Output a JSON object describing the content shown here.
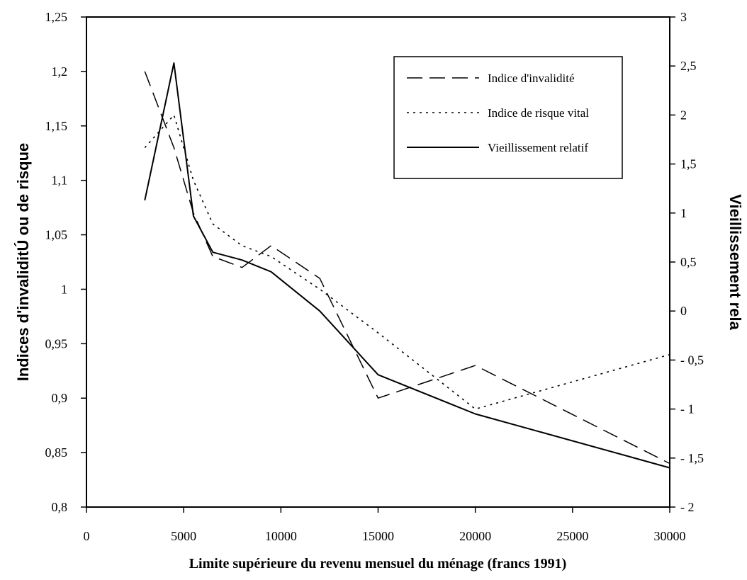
{
  "chart_data": {
    "type": "line",
    "xlabel": "Limite supérieure du revenu mensuel du ménage (francs 1991)",
    "ylabel_left": "Indices d'invaliditÚ ou de risque",
    "ylabel_right": "Vieillissement rela",
    "xlim": [
      0,
      30000
    ],
    "ylim_left": [
      0.8,
      1.25
    ],
    "ylim_right": [
      -2,
      3
    ],
    "x_ticks": [
      {
        "value": 0,
        "label": "0"
      },
      {
        "value": 5000,
        "label": "5000"
      },
      {
        "value": 10000,
        "label": "10000"
      },
      {
        "value": 15000,
        "label": "15000"
      },
      {
        "value": 20000,
        "label": "20000"
      },
      {
        "value": 25000,
        "label": "25000"
      },
      {
        "value": 30000,
        "label": "30000"
      }
    ],
    "y_left_ticks": [
      {
        "value": 0.8,
        "label": "0,8"
      },
      {
        "value": 0.85,
        "label": "0,85"
      },
      {
        "value": 0.9,
        "label": "0,9"
      },
      {
        "value": 0.95,
        "label": "0,95"
      },
      {
        "value": 1.0,
        "label": "1"
      },
      {
        "value": 1.05,
        "label": "1,05"
      },
      {
        "value": 1.1,
        "label": "1,1"
      },
      {
        "value": 1.15,
        "label": "1,15"
      },
      {
        "value": 1.2,
        "label": "1,2"
      },
      {
        "value": 1.25,
        "label": "1,25"
      }
    ],
    "y_right_ticks": [
      {
        "value": -2,
        "label": "- 2"
      },
      {
        "value": -1.5,
        "label": "- 1,5"
      },
      {
        "value": -1,
        "label": "- 1"
      },
      {
        "value": -0.5,
        "label": "- 0,5"
      },
      {
        "value": 0,
        "label": "0"
      },
      {
        "value": 0.5,
        "label": "0,5"
      },
      {
        "value": 1,
        "label": "1"
      },
      {
        "value": 1.5,
        "label": "1,5"
      },
      {
        "value": 2,
        "label": "2"
      },
      {
        "value": 2.5,
        "label": "2,5"
      },
      {
        "value": 3,
        "label": "3"
      }
    ],
    "grid": false,
    "legend_position": "top-right",
    "series": [
      {
        "name": "Indice d'invalidité",
        "axis": "left",
        "style": "dashed",
        "x": [
          3000,
          4500,
          5500,
          6500,
          8000,
          9500,
          12000,
          15000,
          20000,
          30000
        ],
        "y": [
          1.2,
          1.13,
          1.07,
          1.03,
          1.02,
          1.04,
          1.01,
          0.9,
          0.93,
          0.84
        ]
      },
      {
        "name": "Indice de risque vital",
        "axis": "left",
        "style": "dotted",
        "x": [
          3000,
          4500,
          5500,
          6500,
          8000,
          9500,
          12000,
          15000,
          20000,
          30000
        ],
        "y": [
          1.13,
          1.16,
          1.1,
          1.06,
          1.04,
          1.03,
          1.0,
          0.96,
          0.89,
          0.94
        ]
      },
      {
        "name": "Vieillissement relatif",
        "axis": "right",
        "style": "solid",
        "x": [
          3000,
          4500,
          5500,
          6500,
          8000,
          9500,
          12000,
          15000,
          20000,
          30000
        ],
        "y": [
          1.13,
          2.53,
          0.97,
          0.6,
          0.52,
          0.4,
          0.0,
          -0.65,
          -1.05,
          -1.6
        ]
      }
    ]
  }
}
